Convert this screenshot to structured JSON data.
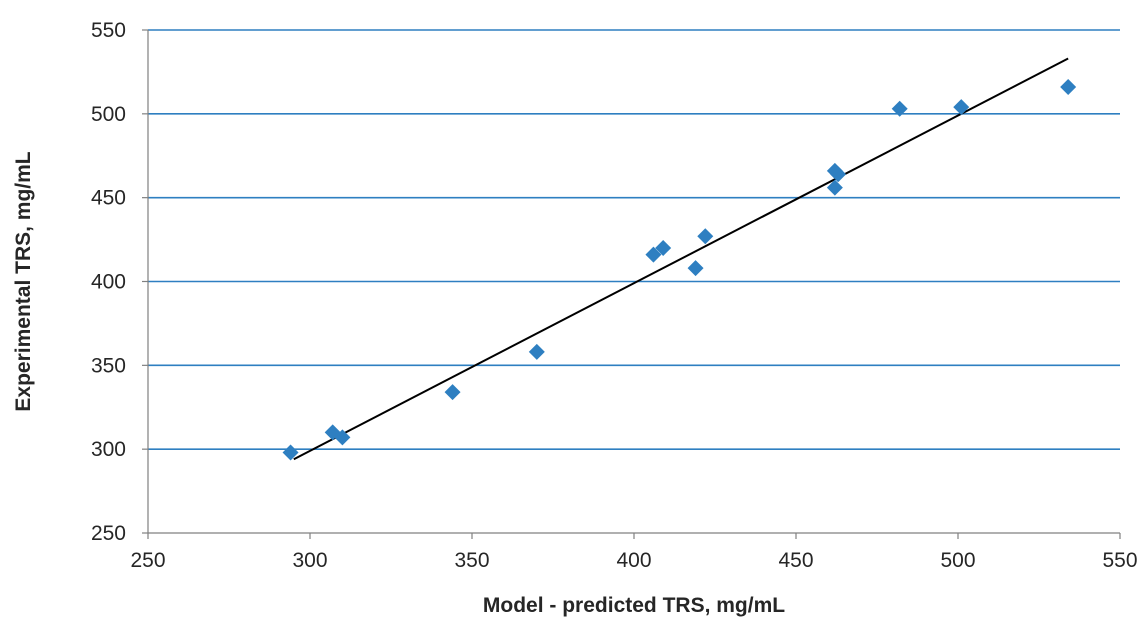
{
  "chart_data": {
    "type": "scatter",
    "title": "",
    "xlabel": "Model - predicted TRS, mg/mL",
    "ylabel": "Experimental TRS, mg/mL",
    "xlim": [
      250,
      550
    ],
    "ylim": [
      250,
      550
    ],
    "x_ticks": [
      "250",
      "300",
      "350",
      "400",
      "450",
      "500",
      "550"
    ],
    "y_ticks": [
      "250",
      "300",
      "350",
      "400",
      "450",
      "500",
      "550"
    ],
    "grid": "horizontal",
    "legend": "none",
    "colors": {
      "marker": "#2e7fc1",
      "gridline": "#2e7fc1",
      "trendline": "#000000",
      "frame": "#808080"
    },
    "series": [
      {
        "marker": "diamond",
        "points": [
          {
            "x": 294,
            "y": 298
          },
          {
            "x": 307,
            "y": 310
          },
          {
            "x": 310,
            "y": 307
          },
          {
            "x": 344,
            "y": 334
          },
          {
            "x": 370,
            "y": 358
          },
          {
            "x": 406,
            "y": 416
          },
          {
            "x": 409,
            "y": 420
          },
          {
            "x": 419,
            "y": 408
          },
          {
            "x": 422,
            "y": 427
          },
          {
            "x": 462,
            "y": 466
          },
          {
            "x": 463,
            "y": 464
          },
          {
            "x": 462,
            "y": 456
          },
          {
            "x": 482,
            "y": 503
          },
          {
            "x": 501,
            "y": 504
          },
          {
            "x": 534,
            "y": 516
          }
        ]
      }
    ],
    "trendline": {
      "x": [
        295,
        534
      ],
      "y": [
        294,
        533
      ]
    }
  }
}
